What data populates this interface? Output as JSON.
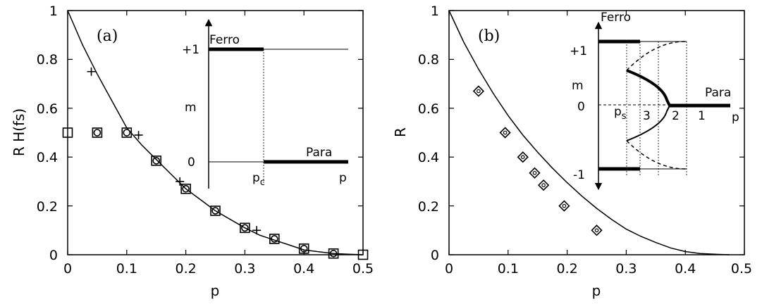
{
  "chart_data": [
    {
      "id": "a",
      "type": "scatter",
      "panel_label": "(a)",
      "xlabel": "p",
      "ylabel": "R H(fs)",
      "xlim": [
        0,
        0.5
      ],
      "ylim": [
        0,
        1
      ],
      "xticks": [
        "0",
        "0.1",
        "0.2",
        "0.3",
        "0.4",
        "0.5"
      ],
      "xtick_values": [
        0,
        0.1,
        0.2,
        0.3,
        0.4,
        0.5
      ],
      "yticks": [
        "0",
        "0.2",
        "0.4",
        "0.6",
        "0.8",
        "1"
      ],
      "ytick_values": [
        0,
        0.2,
        0.4,
        0.6,
        0.8,
        1
      ],
      "grid": false,
      "curve": {
        "x": [
          0,
          0.025,
          0.05,
          0.075,
          0.1,
          0.125,
          0.15,
          0.175,
          0.2,
          0.225,
          0.25,
          0.275,
          0.3,
          0.325,
          0.35,
          0.375,
          0.4,
          0.425,
          0.45,
          0.475,
          0.5
        ],
        "y": [
          1,
          0.86,
          0.74,
          0.63,
          0.52,
          0.45,
          0.39,
          0.33,
          0.27,
          0.225,
          0.18,
          0.145,
          0.11,
          0.08,
          0.06,
          0.04,
          0.02,
          0.012,
          0.005,
          0.002,
          0
        ]
      },
      "series": [
        {
          "marker": "square",
          "x": [
            0,
            0.05,
            0.1,
            0.15,
            0.2,
            0.25,
            0.3,
            0.35,
            0.4,
            0.45,
            0.5
          ],
          "y": [
            0.5,
            0.5,
            0.5,
            0.385,
            0.27,
            0.18,
            0.11,
            0.065,
            0.025,
            0.005,
            0
          ]
        },
        {
          "marker": "circle",
          "x": [
            0.05,
            0.1,
            0.15,
            0.2,
            0.25,
            0.3,
            0.35,
            0.4,
            0.45
          ],
          "y": [
            0.5,
            0.5,
            0.385,
            0.27,
            0.18,
            0.11,
            0.065,
            0.025,
            0.005
          ]
        },
        {
          "marker": "plus",
          "x": [
            0.04,
            0.12,
            0.19,
            0.32
          ],
          "y": [
            0.75,
            0.49,
            0.3,
            0.1
          ]
        }
      ],
      "inset": {
        "ylabel": "m",
        "yticks": [
          "+1",
          "0"
        ],
        "xtick_labels": [
          "p",
          "p"
        ],
        "xtick_subs": [
          "c",
          ""
        ],
        "labels": [
          "Ferro",
          "Para"
        ]
      }
    },
    {
      "id": "b",
      "type": "scatter",
      "panel_label": "(b)",
      "xlabel": "p",
      "ylabel": "R",
      "xlim": [
        0,
        0.5
      ],
      "ylim": [
        0,
        1
      ],
      "xticks": [
        "0",
        "0.1",
        "0.2",
        "0.3",
        "0.4",
        "0.5"
      ],
      "xtick_values": [
        0,
        0.1,
        0.2,
        0.3,
        0.4,
        0.5
      ],
      "yticks": [
        "0",
        "0.2",
        "0.4",
        "0.6",
        "0.8",
        "1"
      ],
      "ytick_values": [
        0,
        0.2,
        0.4,
        0.6,
        0.8,
        1
      ],
      "grid": false,
      "curve": {
        "x": [
          0,
          0.025,
          0.05,
          0.075,
          0.1,
          0.125,
          0.15,
          0.175,
          0.2,
          0.225,
          0.25,
          0.275,
          0.3,
          0.325,
          0.35,
          0.375,
          0.4,
          0.425,
          0.45,
          0.475
        ],
        "y": [
          1,
          0.87,
          0.76,
          0.66,
          0.57,
          0.49,
          0.42,
          0.355,
          0.295,
          0.24,
          0.19,
          0.145,
          0.105,
          0.075,
          0.05,
          0.028,
          0.013,
          0.005,
          0.002,
          0
        ]
      },
      "series": [
        {
          "marker": "diamond",
          "x": [
            0.05,
            0.095,
            0.125,
            0.145,
            0.16,
            0.195,
            0.25
          ],
          "y": [
            0.67,
            0.5,
            0.4,
            0.335,
            0.285,
            0.2,
            0.1
          ]
        }
      ],
      "inset": {
        "ylabel": "m",
        "yticks": [
          "+1",
          "0",
          "-1"
        ],
        "xtick_labels": [
          "p",
          "3",
          "2",
          "1",
          "p"
        ],
        "xtick_subs": [
          "s",
          "",
          "",
          "",
          ""
        ],
        "labels": [
          "Ferro",
          "Para"
        ]
      }
    }
  ]
}
